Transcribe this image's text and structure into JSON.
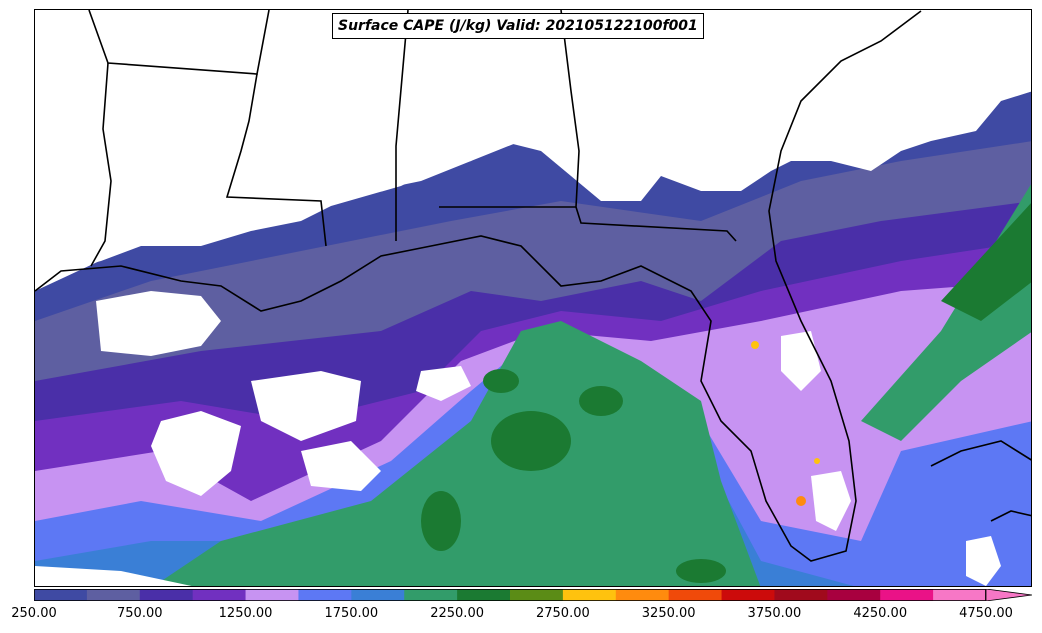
{
  "title": "Surface CAPE (J/kg) Valid: 202105122100f001",
  "colorbar": {
    "colors": [
      "#3f4aa3",
      "#5e5fa1",
      "#4a2fa8",
      "#7130c0",
      "#c793f2",
      "#5d78f4",
      "#3a7fd6",
      "#329c6a",
      "#1b7a32",
      "#5b8c16",
      "#ffc20e",
      "#ff8b0e",
      "#f04a0a",
      "#cc0b0b",
      "#a00a1c",
      "#a8003f",
      "#ea1287",
      "#f777c6"
    ],
    "tick_labels": [
      "250.00",
      "750.00",
      "1250.00",
      "1750.00",
      "2250.00",
      "2750.00",
      "3250.00",
      "3750.00",
      "4250.00",
      "4750.00"
    ],
    "extend": "max",
    "min": 250,
    "max": 4750,
    "step": 250
  },
  "map": {
    "field": "Surface CAPE",
    "units": "J/kg",
    "valid": "202105122100f001"
  }
}
